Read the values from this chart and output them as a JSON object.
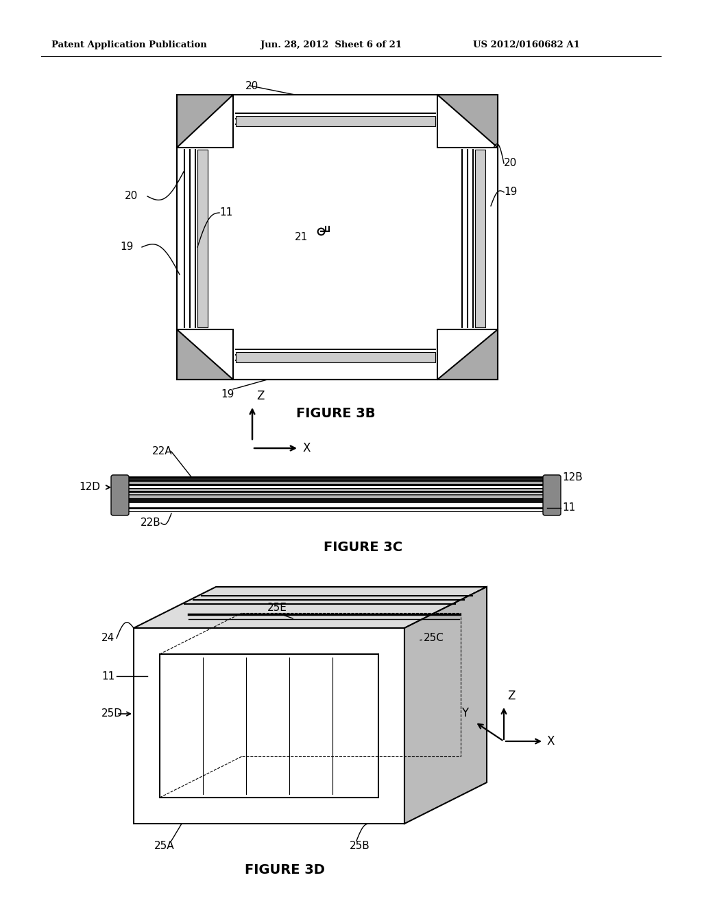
{
  "bg_color": "#ffffff",
  "line_color": "#000000",
  "header_left": "Patent Application Publication",
  "header_center": "Jun. 28, 2012  Sheet 6 of 21",
  "header_right": "US 2012/0160682 A1",
  "fig3b_title": "FIGURE 3B",
  "fig3c_title": "FIGURE 3C",
  "fig3d_title": "FIGURE 3D"
}
